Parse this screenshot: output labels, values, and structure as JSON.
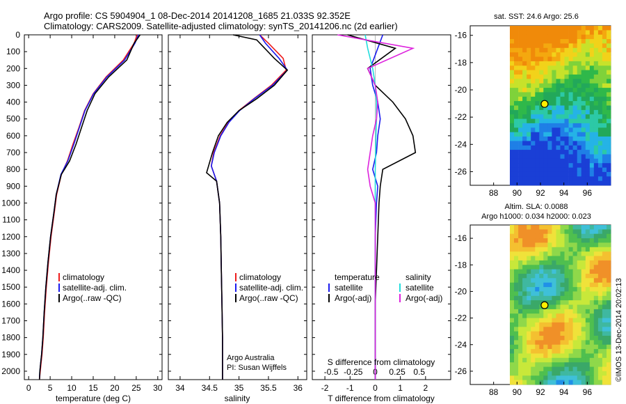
{
  "header": {
    "line1": "Argo profile: CS 5904904_1 08-Dec-2014 20141208_1685 21.033S 92.352E",
    "line2": "Climatology: CARS2009. Satellite-adjusted climatology: synTS_20141206.nc (2d earlier)"
  },
  "colors": {
    "climatology": "#ee1c1c",
    "satellite": "#1a1aee",
    "argo": "#000000",
    "salinity_satellite": "#22dddd",
    "salinity_argo": "#dd22dd"
  },
  "chart_data": [
    {
      "id": "temperature",
      "type": "line",
      "xlabel": "temperature (deg C)",
      "ylabel": "",
      "xlim": [
        -1,
        31
      ],
      "ylim": [
        2050,
        0
      ],
      "xticks": [
        0,
        5,
        10,
        15,
        20,
        25,
        30
      ],
      "yticks": [
        0,
        100,
        200,
        300,
        400,
        500,
        600,
        700,
        800,
        900,
        1000,
        1100,
        1200,
        1300,
        1400,
        1500,
        1600,
        1700,
        1800,
        1900,
        2000
      ],
      "legend": [
        "climatology",
        "satellite-adj. clim.",
        "Argo(..raw -QC)"
      ],
      "series": [
        {
          "name": "climatology",
          "x": [
            25.2,
            24.5,
            22,
            18,
            15,
            13,
            11.7,
            10.3,
            9,
            7.6,
            6.5,
            6,
            5.2,
            4.6,
            4.1,
            3.7,
            3.4,
            3.1,
            2.9,
            2.7,
            2.5
          ],
          "y": [
            0,
            50,
            150,
            250,
            350,
            450,
            550,
            650,
            750,
            830,
            950,
            1050,
            1200,
            1350,
            1500,
            1650,
            1800,
            1900,
            1950,
            2000,
            2050
          ]
        },
        {
          "name": "satellite-adj. clim.",
          "x": [
            25.5,
            24.7,
            22.3,
            18.2,
            15.1,
            13.1,
            11.8,
            10.5,
            9.1,
            7.5,
            6.4,
            5.9,
            5.1,
            4.5,
            4,
            3.6,
            3.3,
            3,
            2.8,
            2.6,
            2.5
          ],
          "y": [
            0,
            50,
            150,
            250,
            350,
            450,
            550,
            650,
            750,
            830,
            950,
            1050,
            1200,
            1350,
            1500,
            1650,
            1800,
            1900,
            1950,
            2000,
            2050
          ]
        },
        {
          "name": "Argo(..raw -QC)",
          "x": [
            25.9,
            24.5,
            22.8,
            18.6,
            15.4,
            13.6,
            12.3,
            11,
            9.5,
            7.6,
            6.4,
            5.9,
            5.1,
            4.5,
            4,
            3.6,
            3.3,
            3,
            2.8,
            2.6,
            2.5
          ],
          "y": [
            0,
            50,
            150,
            250,
            350,
            450,
            550,
            650,
            750,
            830,
            950,
            1050,
            1200,
            1350,
            1500,
            1650,
            1800,
            1900,
            1950,
            2000,
            2050
          ]
        }
      ]
    },
    {
      "id": "salinity",
      "type": "line",
      "xlabel": "salinity",
      "xlim": [
        33.8,
        36.15
      ],
      "ylim": [
        2050,
        0
      ],
      "xticks": [
        34,
        34.5,
        35,
        35.5,
        36
      ],
      "legend": [
        "climatology",
        "satellite-adj. clim.",
        "Argo(..raw -QC)"
      ],
      "annotation": [
        "Argo Australia",
        "PI: Susan Wijffels"
      ],
      "series": [
        {
          "name": "climatology",
          "x": [
            35.35,
            35.5,
            35.75,
            35.8,
            35.55,
            35.25,
            35.0,
            34.82,
            34.68,
            34.57,
            34.53,
            34.62,
            34.67,
            34.69,
            34.7,
            34.71,
            34.72,
            34.72,
            34.72
          ],
          "y": [
            0,
            50,
            140,
            210,
            300,
            380,
            450,
            520,
            600,
            700,
            780,
            870,
            1000,
            1200,
            1400,
            1600,
            1800,
            1950,
            2050
          ]
        },
        {
          "name": "satellite-adj. clim.",
          "x": [
            35.35,
            35.45,
            35.68,
            35.82,
            35.57,
            35.26,
            35.01,
            34.83,
            34.69,
            34.58,
            34.53,
            34.62,
            34.67,
            34.69,
            34.7,
            34.71,
            34.72,
            34.72,
            34.72
          ],
          "y": [
            0,
            50,
            140,
            210,
            300,
            380,
            450,
            520,
            600,
            700,
            780,
            870,
            1000,
            1200,
            1400,
            1600,
            1800,
            1950,
            2050
          ]
        },
        {
          "name": "Argo(..raw -QC)",
          "x": [
            34.9,
            35.3,
            35.6,
            35.82,
            35.6,
            35.3,
            35.0,
            34.8,
            34.65,
            34.55,
            34.45,
            34.62,
            34.67,
            34.69,
            34.7,
            34.71,
            34.72,
            34.72,
            34.72
          ],
          "y": [
            0,
            30,
            140,
            210,
            300,
            380,
            450,
            520,
            600,
            700,
            820,
            870,
            1000,
            1200,
            1400,
            1600,
            1800,
            1950,
            2050
          ]
        }
      ]
    },
    {
      "id": "difference",
      "type": "line",
      "xlabel": "T difference from climatology",
      "xlabel_top": "S difference from climatology",
      "xlim": [
        -2.5,
        3
      ],
      "ylim": [
        2050,
        0
      ],
      "xticks": [
        -2,
        -1,
        0,
        1,
        2
      ],
      "xticks_top": [
        -0.5,
        -0.25,
        0,
        0.25,
        0.5
      ],
      "legend_t_title": "temperature",
      "legend_s_title": "salinity",
      "legend_t": [
        "satellite",
        "Argo(-adj)"
      ],
      "legend_s": [
        "satellite",
        "Argo(-adj)"
      ],
      "series": [
        {
          "name": "T satellite",
          "x": [
            0.3,
            0.1,
            -0.2,
            -0.1,
            0.1,
            0.2,
            0.1,
            0.05,
            -0.1,
            0.1,
            0.05,
            0.0,
            0.0,
            0.0,
            0.0,
            0.0
          ],
          "y": [
            0,
            80,
            200,
            300,
            400,
            500,
            600,
            700,
            800,
            900,
            1000,
            1200,
            1400,
            1600,
            1800,
            2050
          ]
        },
        {
          "name": "T Argo(-adj)",
          "x": [
            -1.1,
            0.8,
            -0.3,
            0.0,
            0.7,
            1.2,
            1.5,
            1.6,
            0.3,
            0.2,
            0.15,
            0.1,
            0.05,
            0.0,
            0.0,
            0.0
          ],
          "y": [
            0,
            80,
            200,
            300,
            400,
            500,
            600,
            700,
            800,
            900,
            1000,
            1200,
            1400,
            1600,
            1800,
            2050
          ]
        },
        {
          "name": "S satellite",
          "x": [
            -0.4,
            -0.3,
            -0.1,
            0.0,
            0.05,
            0.05,
            0.03,
            0.0,
            0.0,
            0.0,
            0.0,
            0.0,
            0.0
          ],
          "y": [
            0,
            80,
            200,
            300,
            400,
            500,
            600,
            800,
            1000,
            1200,
            1500,
            1800,
            2050
          ]
        },
        {
          "name": "S Argo(-adj)",
          "x": [
            -1.5,
            1.5,
            -0.3,
            0.0,
            0.1,
            0.05,
            -0.1,
            -0.3,
            -0.2,
            0.0,
            0.0,
            0.0,
            0.0
          ],
          "y": [
            0,
            80,
            200,
            300,
            400,
            500,
            600,
            800,
            900,
            1000,
            1200,
            1800,
            2050
          ]
        }
      ]
    },
    {
      "id": "sst_map",
      "type": "heatmap",
      "title": "sat. SST: 24.6 Argo: 25.6",
      "xticks": [
        88,
        90,
        92,
        94,
        96
      ],
      "yticks": [
        -16,
        -18,
        -20,
        -22,
        -24,
        -26
      ],
      "xlim": [
        86,
        98
      ],
      "ylim": [
        -27,
        -15.3
      ],
      "profile_lon": 92.352,
      "profile_lat": -21.033
    },
    {
      "id": "sla_map",
      "type": "heatmap",
      "title": "Altim. SLA: 0.0088",
      "subtitle": "Argo h1000: 0.034 h2000: 0.023",
      "xticks": [
        88,
        90,
        92,
        94,
        96
      ],
      "yticks": [
        -16,
        -18,
        -20,
        -22,
        -24,
        -26
      ],
      "xlim": [
        86,
        98
      ],
      "ylim": [
        -27,
        -15
      ],
      "profile_lon": 92.352,
      "profile_lat": -21.033
    }
  ],
  "side_label": "©IMOS 13-Dec-2014 20:02:13"
}
